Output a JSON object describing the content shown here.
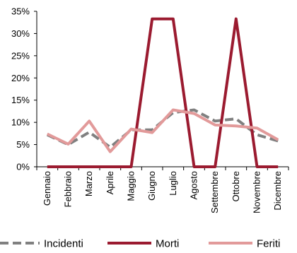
{
  "chart_data": {
    "type": "line",
    "categories": [
      "Gennaio",
      "Febbraio",
      "Marzo",
      "Aprile",
      "Maggio",
      "Giugno",
      "Luglio",
      "Agosto",
      "Settembre",
      "Ottobre",
      "Novembre",
      "Dicembre"
    ],
    "series": [
      {
        "name": "Incidenti",
        "values": [
          7.2,
          5.0,
          7.8,
          4.4,
          8.3,
          8.3,
          12.2,
          12.8,
          10.3,
          10.8,
          7.2,
          5.8
        ],
        "color": "#808080",
        "style": "dashed"
      },
      {
        "name": "Morti",
        "values": [
          0,
          0,
          0,
          0,
          0,
          33.3,
          33.3,
          0,
          0,
          33.3,
          0,
          0
        ],
        "color": "#9b1b30",
        "style": "solid"
      },
      {
        "name": "Feriti",
        "values": [
          7.4,
          5.1,
          10.3,
          3.4,
          8.5,
          7.7,
          12.8,
          12.0,
          9.4,
          9.2,
          8.7,
          6.1
        ],
        "color": "#e29a9a",
        "style": "solid"
      }
    ],
    "yticks": [
      "0%",
      "5%",
      "10%",
      "15%",
      "20%",
      "25%",
      "30%",
      "35%"
    ],
    "ylim": [
      0,
      35
    ],
    "grid": false,
    "legend": "bottom"
  }
}
